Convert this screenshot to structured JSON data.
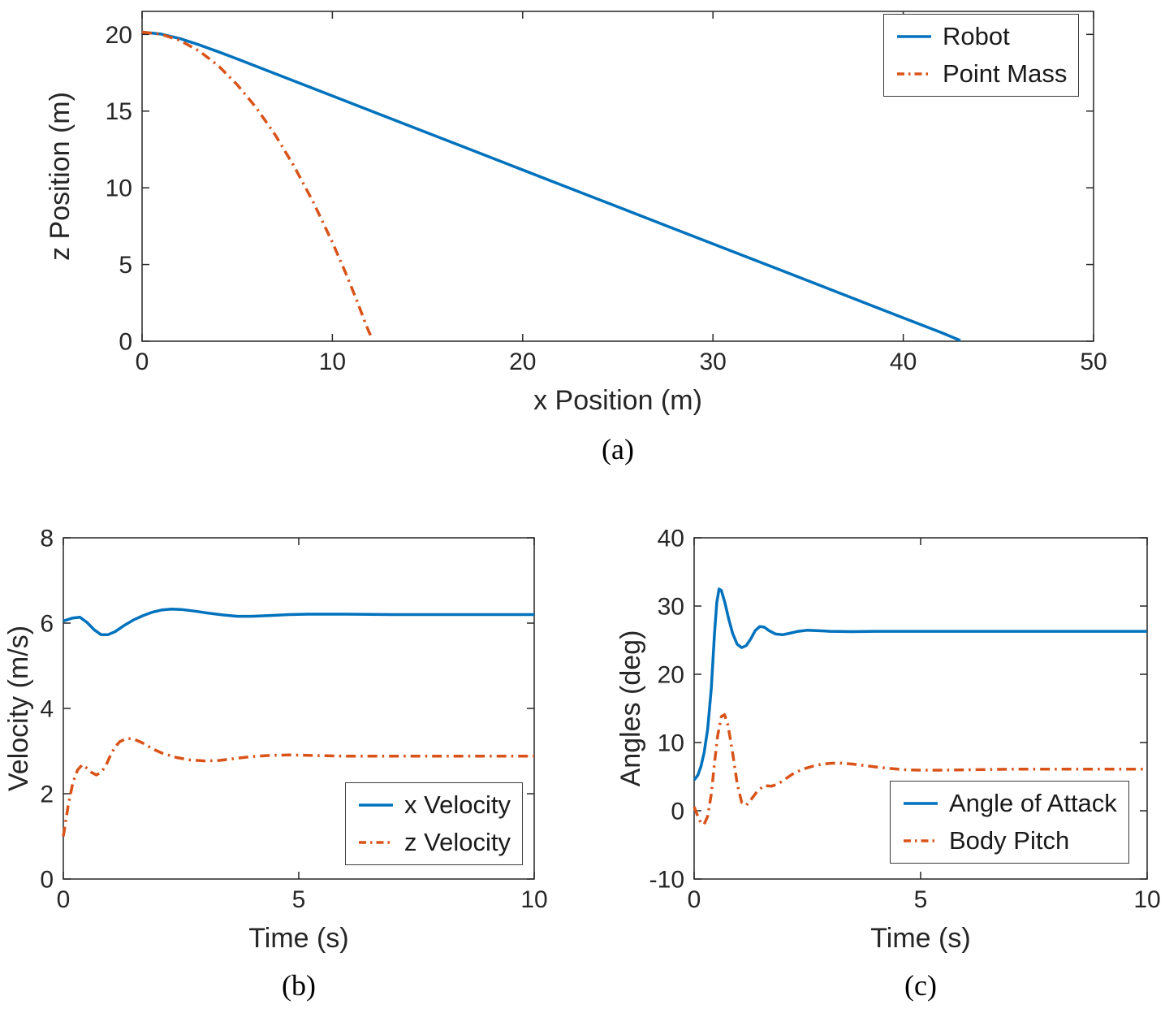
{
  "colors": {
    "blue": "#0072BD",
    "orange": "#D95319",
    "axis": "#262626"
  },
  "captions": {
    "a": "(a)",
    "b": "(b)",
    "c": "(c)"
  },
  "chart_data": [
    {
      "id": "a",
      "type": "line",
      "title": "",
      "xlabel": "x Position (m)",
      "ylabel": "z Position (m)",
      "xlim": [
        0,
        50
      ],
      "ylim": [
        0,
        21.5
      ],
      "xticks": [
        0,
        10,
        20,
        30,
        40,
        50
      ],
      "yticks": [
        0,
        5,
        10,
        15,
        20
      ],
      "grid": false,
      "legend_position": "northeast",
      "series": [
        {
          "name": "Robot",
          "color": "#0072BD",
          "style": "solid",
          "points": [
            [
              0,
              20.15
            ],
            [
              1,
              20.02
            ],
            [
              2,
              19.72
            ],
            [
              3,
              19.32
            ],
            [
              4,
              18.87
            ],
            [
              5,
              18.4
            ],
            [
              7,
              17.44
            ],
            [
              10,
              15.99
            ],
            [
              13,
              14.54
            ],
            [
              16,
              13.1
            ],
            [
              19,
              11.65
            ],
            [
              22,
              10.2
            ],
            [
              25,
              8.76
            ],
            [
              28,
              7.31
            ],
            [
              31,
              5.86
            ],
            [
              34,
              4.42
            ],
            [
              37,
              2.97
            ],
            [
              40,
              1.52
            ],
            [
              42,
              0.56
            ],
            [
              43,
              0.05
            ]
          ]
        },
        {
          "name": "Point Mass",
          "color": "#D95319",
          "style": "dashdot",
          "points": [
            [
              0,
              20.15
            ],
            [
              1,
              20.01
            ],
            [
              2,
              19.6
            ],
            [
              3,
              18.92
            ],
            [
              4,
              17.96
            ],
            [
              5,
              16.72
            ],
            [
              6,
              15.22
            ],
            [
              7,
              13.44
            ],
            [
              8,
              11.38
            ],
            [
              9,
              9.05
            ],
            [
              10,
              6.45
            ],
            [
              10.7,
              4.45
            ],
            [
              11.3,
              2.6
            ],
            [
              11.8,
              0.97
            ],
            [
              12.1,
              0.1
            ]
          ]
        }
      ]
    },
    {
      "id": "b",
      "type": "line",
      "title": "",
      "xlabel": "Time (s)",
      "ylabel": "Velocity (m/s)",
      "xlim": [
        0,
        10
      ],
      "ylim": [
        0,
        8
      ],
      "xticks": [
        0,
        5,
        10
      ],
      "yticks": [
        0,
        2,
        4,
        6,
        8
      ],
      "grid": false,
      "legend_position": "southeast",
      "series": [
        {
          "name": "x Velocity",
          "color": "#0072BD",
          "style": "solid",
          "points": [
            [
              0,
              6.05
            ],
            [
              0.2,
              6.12
            ],
            [
              0.35,
              6.14
            ],
            [
              0.5,
              6.02
            ],
            [
              0.65,
              5.85
            ],
            [
              0.8,
              5.73
            ],
            [
              0.95,
              5.73
            ],
            [
              1.1,
              5.8
            ],
            [
              1.3,
              5.95
            ],
            [
              1.5,
              6.08
            ],
            [
              1.7,
              6.18
            ],
            [
              1.9,
              6.26
            ],
            [
              2.1,
              6.31
            ],
            [
              2.3,
              6.33
            ],
            [
              2.5,
              6.32
            ],
            [
              2.8,
              6.28
            ],
            [
              3.1,
              6.23
            ],
            [
              3.4,
              6.19
            ],
            [
              3.7,
              6.16
            ],
            [
              4,
              6.16
            ],
            [
              4.4,
              6.18
            ],
            [
              4.8,
              6.2
            ],
            [
              5.2,
              6.21
            ],
            [
              5.6,
              6.21
            ],
            [
              6,
              6.21
            ],
            [
              7,
              6.2
            ],
            [
              8,
              6.2
            ],
            [
              9,
              6.2
            ],
            [
              10,
              6.2
            ]
          ]
        },
        {
          "name": "z Velocity",
          "color": "#D95319",
          "style": "dashdot",
          "points": [
            [
              0,
              1.0
            ],
            [
              0.1,
              1.7
            ],
            [
              0.2,
              2.25
            ],
            [
              0.3,
              2.55
            ],
            [
              0.4,
              2.68
            ],
            [
              0.5,
              2.6
            ],
            [
              0.6,
              2.5
            ],
            [
              0.7,
              2.44
            ],
            [
              0.8,
              2.5
            ],
            [
              0.9,
              2.65
            ],
            [
              1,
              2.9
            ],
            [
              1.1,
              3.1
            ],
            [
              1.2,
              3.22
            ],
            [
              1.35,
              3.3
            ],
            [
              1.5,
              3.28
            ],
            [
              1.7,
              3.18
            ],
            [
              1.9,
              3.05
            ],
            [
              2.1,
              2.95
            ],
            [
              2.4,
              2.85
            ],
            [
              2.7,
              2.79
            ],
            [
              3,
              2.77
            ],
            [
              3.3,
              2.78
            ],
            [
              3.6,
              2.82
            ],
            [
              4,
              2.87
            ],
            [
              4.4,
              2.9
            ],
            [
              4.8,
              2.91
            ],
            [
              5.2,
              2.9
            ],
            [
              5.6,
              2.89
            ],
            [
              6,
              2.88
            ],
            [
              7,
              2.88
            ],
            [
              8,
              2.88
            ],
            [
              9,
              2.88
            ],
            [
              10,
              2.88
            ]
          ]
        }
      ]
    },
    {
      "id": "c",
      "type": "line",
      "title": "",
      "xlabel": "Time (s)",
      "ylabel": "Angles (deg)",
      "xlim": [
        0,
        10
      ],
      "ylim": [
        -10,
        40
      ],
      "xticks": [
        0,
        5,
        10
      ],
      "yticks": [
        -10,
        0,
        10,
        20,
        30,
        40
      ],
      "grid": false,
      "legend_position": "east",
      "series": [
        {
          "name": "Angle of Attack",
          "color": "#0072BD",
          "style": "solid",
          "points": [
            [
              0,
              4.5
            ],
            [
              0.08,
              5.2
            ],
            [
              0.15,
              6.5
            ],
            [
              0.22,
              8.5
            ],
            [
              0.3,
              12
            ],
            [
              0.38,
              18
            ],
            [
              0.45,
              26
            ],
            [
              0.5,
              30.5
            ],
            [
              0.55,
              32.5
            ],
            [
              0.6,
              32.3
            ],
            [
              0.68,
              30.5
            ],
            [
              0.76,
              28.2
            ],
            [
              0.85,
              26
            ],
            [
              0.95,
              24.4
            ],
            [
              1.05,
              23.9
            ],
            [
              1.15,
              24.2
            ],
            [
              1.25,
              25.2
            ],
            [
              1.35,
              26.4
            ],
            [
              1.45,
              27
            ],
            [
              1.55,
              26.9
            ],
            [
              1.65,
              26.4
            ],
            [
              1.8,
              25.9
            ],
            [
              1.95,
              25.8
            ],
            [
              2.1,
              26
            ],
            [
              2.3,
              26.3
            ],
            [
              2.5,
              26.45
            ],
            [
              2.7,
              26.4
            ],
            [
              3,
              26.3
            ],
            [
              3.5,
              26.25
            ],
            [
              4,
              26.3
            ],
            [
              5,
              26.3
            ],
            [
              6,
              26.3
            ],
            [
              7,
              26.3
            ],
            [
              8,
              26.3
            ],
            [
              9,
              26.3
            ],
            [
              10,
              26.3
            ]
          ]
        },
        {
          "name": "Body Pitch",
          "color": "#D95319",
          "style": "dashdot",
          "points": [
            [
              0,
              0.6
            ],
            [
              0.08,
              -0.8
            ],
            [
              0.15,
              -1.8
            ],
            [
              0.22,
              -2
            ],
            [
              0.3,
              -0.8
            ],
            [
              0.38,
              2.5
            ],
            [
              0.45,
              7
            ],
            [
              0.52,
              11
            ],
            [
              0.6,
              13.8
            ],
            [
              0.67,
              14.1
            ],
            [
              0.75,
              12.5
            ],
            [
              0.85,
              8.5
            ],
            [
              0.95,
              4
            ],
            [
              1.05,
              1.2
            ],
            [
              1.15,
              0.8
            ],
            [
              1.25,
              1.6
            ],
            [
              1.4,
              2.9
            ],
            [
              1.55,
              3.7
            ],
            [
              1.7,
              3.6
            ],
            [
              1.85,
              3.9
            ],
            [
              2,
              4.6
            ],
            [
              2.2,
              5.5
            ],
            [
              2.4,
              6.1
            ],
            [
              2.6,
              6.5
            ],
            [
              2.8,
              6.8
            ],
            [
              3,
              6.95
            ],
            [
              3.2,
              7
            ],
            [
              3.5,
              6.85
            ],
            [
              3.8,
              6.6
            ],
            [
              4.1,
              6.35
            ],
            [
              4.4,
              6.15
            ],
            [
              4.7,
              6
            ],
            [
              5,
              5.95
            ],
            [
              5.5,
              5.95
            ],
            [
              6,
              6
            ],
            [
              6.5,
              6.05
            ],
            [
              7,
              6.1
            ],
            [
              8,
              6.1
            ],
            [
              9,
              6.1
            ],
            [
              10,
              6.1
            ]
          ]
        }
      ]
    }
  ]
}
